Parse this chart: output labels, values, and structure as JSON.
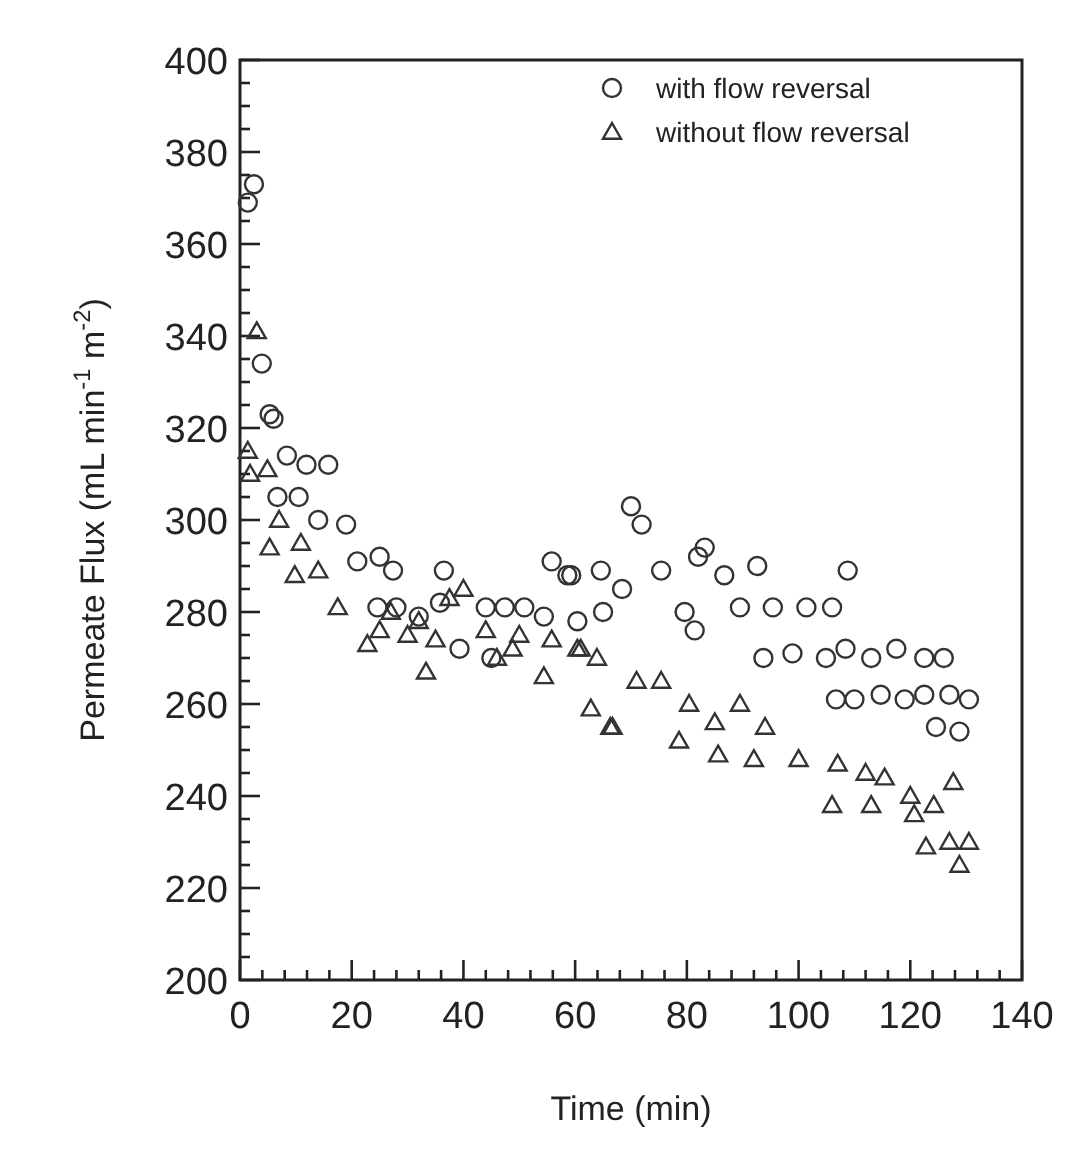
{
  "chart_data": {
    "type": "scatter",
    "xlabel": "Time (min)",
    "ylabel": "Permeate Flux (mL min$^{-1}$ m$^{-2}$)",
    "xlim": [
      0,
      140
    ],
    "ylim": [
      200,
      400
    ],
    "xticks": [
      0,
      {
        "value": 4,
        "label": null
      },
      {
        "value": 8,
        "label": null
      },
      {
        "value": 12,
        "label": null
      },
      {
        "value": 16,
        "label": null
      },
      20,
      {
        "value": 24,
        "label": null
      },
      {
        "value": 28,
        "label": null
      },
      {
        "value": 32,
        "label": null
      },
      {
        "value": 36,
        "label": null
      },
      40,
      {
        "value": 44,
        "label": null
      },
      {
        "value": 48,
        "label": null
      },
      {
        "value": 52,
        "label": null
      },
      {
        "value": 56,
        "label": null
      },
      60,
      {
        "value": 64,
        "label": null
      },
      {
        "value": 68,
        "label": null
      },
      {
        "value": 72,
        "label": null
      },
      {
        "value": 76,
        "label": null
      },
      80,
      {
        "value": 84,
        "label": null
      },
      {
        "value": 88,
        "label": null
      },
      {
        "value": 92,
        "label": null
      },
      {
        "value": 96,
        "label": null
      },
      100,
      {
        "value": 104,
        "label": null
      },
      {
        "value": 108,
        "label": null
      },
      {
        "value": 112,
        "label": null
      },
      {
        "value": 116,
        "label": null
      },
      120,
      {
        "value": 124,
        "label": null
      },
      {
        "value": 128,
        "label": null
      },
      {
        "value": 132,
        "label": null
      },
      {
        "value": 136,
        "label": null
      },
      140
    ],
    "yticks": [
      200,
      {
        "value": 205,
        "label": null
      },
      {
        "value": 210,
        "label": null
      },
      {
        "value": 215,
        "label": null
      },
      220,
      {
        "value": 225,
        "label": null
      },
      {
        "value": 230,
        "label": null
      },
      {
        "value": 235,
        "label": null
      },
      240,
      {
        "value": 245,
        "label": null
      },
      {
        "value": 250,
        "label": null
      },
      {
        "value": 255,
        "label": null
      },
      260,
      {
        "value": 265,
        "label": null
      },
      {
        "value": 270,
        "label": null
      },
      {
        "value": 275,
        "label": null
      },
      280,
      {
        "value": 285,
        "label": null
      },
      {
        "value": 290,
        "label": null
      },
      {
        "value": 295,
        "label": null
      },
      300,
      {
        "value": 305,
        "label": null
      },
      {
        "value": 310,
        "label": null
      },
      {
        "value": 315,
        "label": null
      },
      320,
      {
        "value": 325,
        "label": null
      },
      {
        "value": 330,
        "label": null
      },
      {
        "value": 335,
        "label": null
      },
      340,
      {
        "value": 345,
        "label": null
      },
      {
        "value": 350,
        "label": null
      },
      {
        "value": 355,
        "label": null
      },
      360,
      {
        "value": 365,
        "label": null
      },
      {
        "value": 370,
        "label": null
      },
      {
        "value": 375,
        "label": null
      },
      380,
      {
        "value": 385,
        "label": null
      },
      {
        "value": 390,
        "label": null
      },
      {
        "value": 395,
        "label": null
      },
      400
    ],
    "grid": false,
    "legend": "top right",
    "series": [
      {
        "name": "with flow reversal",
        "color": "#333333",
        "marker": "circle",
        "x": [
          1.4,
          2.5,
          3.9,
          5.3,
          6,
          6.7,
          8.4,
          10.5,
          11.9,
          14,
          15.8,
          19,
          21,
          24.6,
          25,
          27.4,
          28,
          32,
          35.8,
          36.5,
          39.3,
          44,
          45,
          47.4,
          50.9,
          54.4,
          55.8,
          58.6,
          59.3,
          60.4,
          64.6,
          65,
          68.4,
          70,
          71.9,
          75.4,
          79.6,
          81.4,
          82,
          83.2,
          86.7,
          89.5,
          92.6,
          93.7,
          95.4,
          98.9,
          101.4,
          104.9,
          106,
          106.7,
          108.4,
          108.8,
          110,
          113,
          114.7,
          117.5,
          119,
          122.5,
          122.5,
          124.6,
          126,
          127,
          128.8,
          130.5
        ],
        "values": [
          369,
          373,
          334,
          323,
          322,
          305,
          314,
          305,
          312,
          300,
          312,
          299,
          291,
          281,
          292,
          289,
          281,
          279,
          282,
          289,
          272,
          281,
          270,
          281,
          281,
          279,
          291,
          288,
          288,
          278,
          289,
          280,
          285,
          303,
          299,
          289,
          280,
          276,
          292,
          294,
          288,
          281,
          290,
          270,
          281,
          271,
          281,
          270,
          281,
          261,
          272,
          289,
          261,
          270,
          262,
          272,
          261,
          270,
          262,
          255,
          270,
          262,
          254,
          261
        ]
      },
      {
        "name": "without flow reversal",
        "color": "#333333",
        "marker": "triangle",
        "x": [
          1.4,
          1.8,
          3,
          4.9,
          5.3,
          7,
          9.8,
          10.9,
          14,
          17.5,
          22.8,
          25,
          27,
          30,
          32,
          33.3,
          35,
          37.5,
          40,
          44,
          46,
          48.8,
          50,
          54.4,
          55.8,
          60.4,
          61,
          62.8,
          63.9,
          66.3,
          66.7,
          71,
          75.4,
          78.6,
          80.4,
          85,
          85.6,
          89.5,
          92,
          94,
          100,
          106,
          107,
          112,
          113,
          115.4,
          120,
          120.7,
          122.8,
          124.2,
          127,
          127.7,
          128.8,
          130.5
        ],
        "values": [
          315,
          310,
          341,
          311,
          294,
          300,
          288,
          295,
          289,
          281,
          273,
          276,
          280,
          275,
          278,
          267,
          274,
          283,
          285,
          276,
          270,
          272,
          275,
          266,
          274,
          272,
          272,
          259,
          270,
          255,
          255,
          265,
          265,
          252,
          260,
          256,
          249,
          260,
          248,
          255,
          248,
          238,
          247,
          245,
          238,
          244,
          240,
          236,
          229,
          238,
          230,
          243,
          225,
          230
        ]
      }
    ]
  }
}
